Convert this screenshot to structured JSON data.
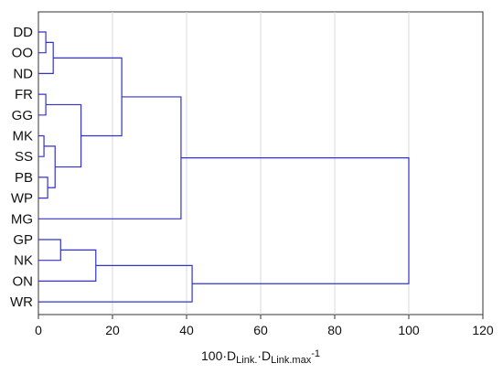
{
  "chart_data": {
    "type": "dendrogram",
    "orientation": "horizontal",
    "xaxis": {
      "label_parts": [
        {
          "text": "100·D",
          "baseline": "normal"
        },
        {
          "text": "Link.",
          "baseline": "sub"
        },
        {
          "text": "·D",
          "baseline": "normal"
        },
        {
          "text": "Link.max",
          "baseline": "sub"
        },
        {
          "text": "-1",
          "baseline": "super"
        }
      ],
      "ticks": [
        0,
        20,
        40,
        60,
        80,
        100,
        120
      ],
      "tick_labels": [
        "0",
        "20",
        "40",
        "60",
        "80",
        "100",
        "120"
      ],
      "range": [
        0,
        120
      ]
    },
    "grid": "vertical",
    "line_color": "#3333cc",
    "leaves": [
      "DD",
      "OO",
      "ND",
      "FR",
      "GG",
      "MK",
      "SS",
      "PB",
      "WP",
      "MG",
      "GP",
      "NK",
      "ON",
      "WR"
    ],
    "merges": [
      {
        "id": "c1",
        "left": "DD",
        "right": "OO",
        "height": 2
      },
      {
        "id": "c2",
        "left": "c1",
        "right": "ND",
        "height": 4
      },
      {
        "id": "c3",
        "left": "FR",
        "right": "GG",
        "height": 2
      },
      {
        "id": "c4",
        "left": "MK",
        "right": "SS",
        "height": 1.5
      },
      {
        "id": "c5",
        "left": "PB",
        "right": "WP",
        "height": 2.5
      },
      {
        "id": "c6",
        "left": "c4",
        "right": "c5",
        "height": 4.5
      },
      {
        "id": "c7",
        "left": "c3",
        "right": "c6",
        "height": 11.5
      },
      {
        "id": "c8",
        "left": "c2",
        "right": "c7",
        "height": 22.5
      },
      {
        "id": "c9",
        "left": "c8",
        "right": "MG",
        "height": 38.5
      },
      {
        "id": "c10",
        "left": "GP",
        "right": "NK",
        "height": 6
      },
      {
        "id": "c11",
        "left": "c10",
        "right": "ON",
        "height": 15.5
      },
      {
        "id": "c12",
        "left": "c11",
        "right": "WR",
        "height": 41.5
      },
      {
        "id": "c13",
        "left": "c9",
        "right": "c12",
        "height": 100
      }
    ]
  }
}
